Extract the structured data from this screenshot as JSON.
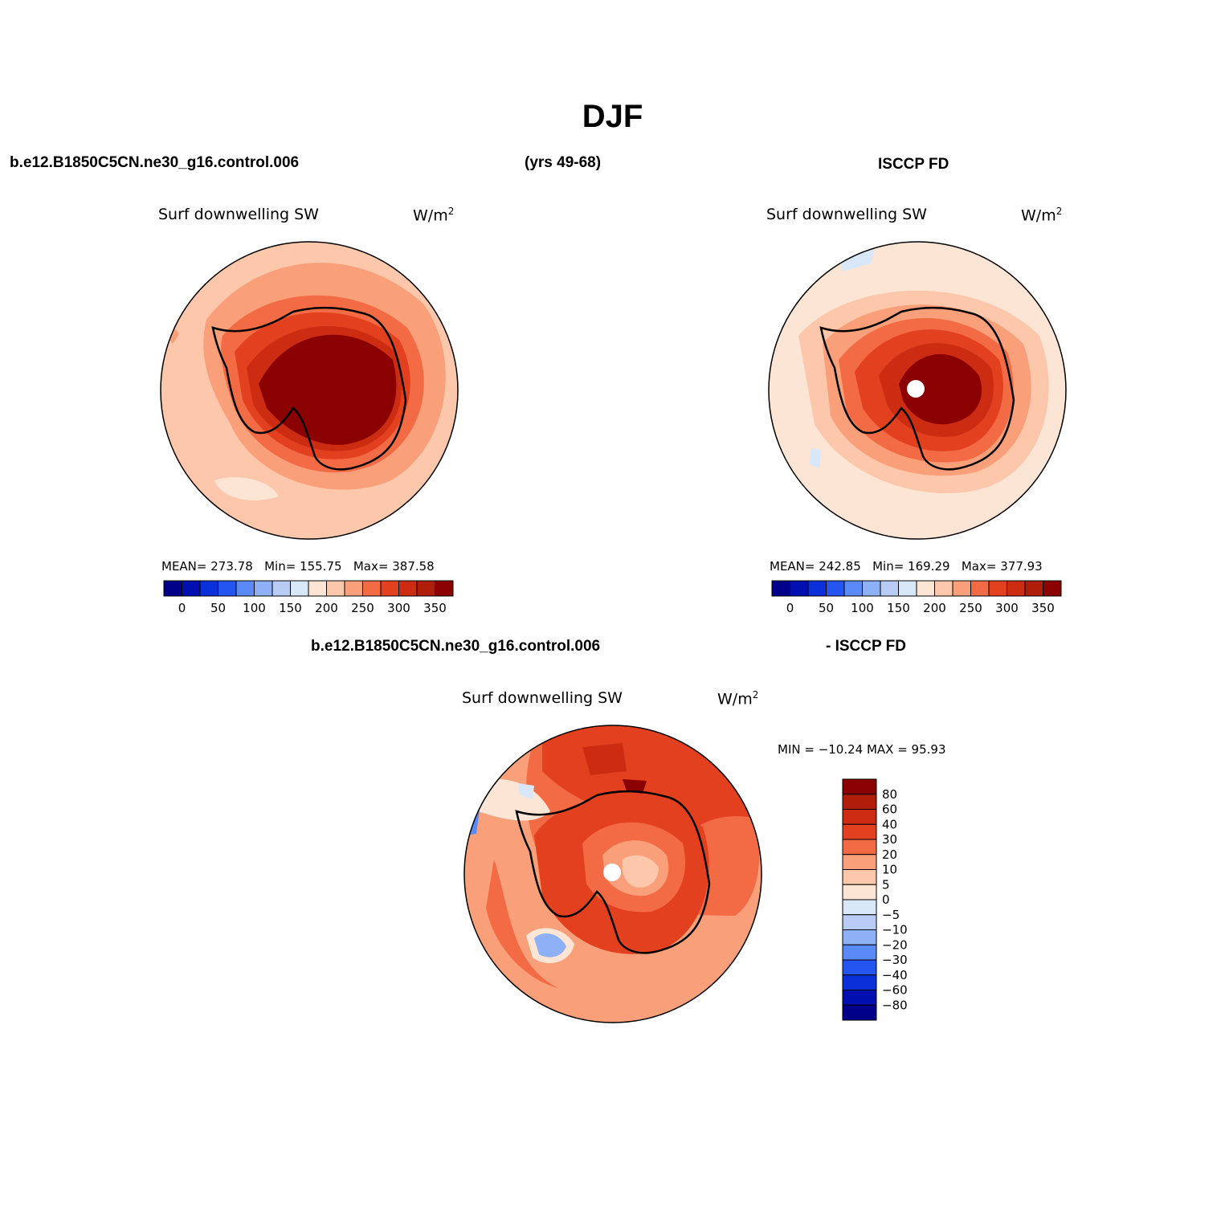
{
  "title": "DJF",
  "headers": {
    "case_name": "b.e12.B1850C5CN.ne30_g16.control.006",
    "years": "(yrs 49-68)",
    "obs_name": "ISCCP FD",
    "diff_case_name": "b.e12.B1850C5CN.ne30_g16.control.006",
    "diff_obs_name": "- ISCCP FD"
  },
  "panels": {
    "model": {
      "variable": "Surf downwelling SW",
      "units": "W/m",
      "units_sup": "2",
      "stats": {
        "mean_label": "MEAN=",
        "mean": "273.78",
        "min_label": "Min=",
        "min": "155.75",
        "max_label": "Max=",
        "max": "387.58"
      }
    },
    "obs": {
      "variable": "Surf downwelling SW",
      "units": "W/m",
      "units_sup": "2",
      "stats": {
        "mean_label": "MEAN=",
        "mean": "242.85",
        "min_label": "Min=",
        "min": "169.29",
        "max_label": "Max=",
        "max": "377.93"
      }
    },
    "diff": {
      "variable": "Surf downwelling SW",
      "units": "W/m",
      "units_sup": "2",
      "stats_line": "MIN = −10.24 MAX =   95.93"
    }
  },
  "colorbars": {
    "absolute": {
      "colors": [
        "#00008b",
        "#0010b0",
        "#0a30d9",
        "#2555f0",
        "#5a8af5",
        "#8db0f7",
        "#b8ccf5",
        "#d9e8f8",
        "#fde5d5",
        "#fcc7aa",
        "#f9a07a",
        "#f36b45",
        "#e34020",
        "#cc2c12",
        "#b01e0a",
        "#8b0000"
      ],
      "labels": [
        "0",
        "50",
        "100",
        "150",
        "200",
        "250",
        "300",
        "350"
      ]
    },
    "difference": {
      "colors": [
        "#00008b",
        "#0010b0",
        "#0a30d9",
        "#2555f0",
        "#5a8af5",
        "#8db0f7",
        "#b8ccf5",
        "#d9e8f8",
        "#fde5d5",
        "#fcc7aa",
        "#f9a07a",
        "#f36b45",
        "#e34020",
        "#cc2c12",
        "#b01e0a",
        "#8b0000"
      ],
      "labels": [
        "80",
        "60",
        "40",
        "30",
        "20",
        "10",
        "5",
        "0",
        "−5",
        "−10",
        "−20",
        "−30",
        "−40",
        "−60",
        "−80"
      ]
    }
  }
}
